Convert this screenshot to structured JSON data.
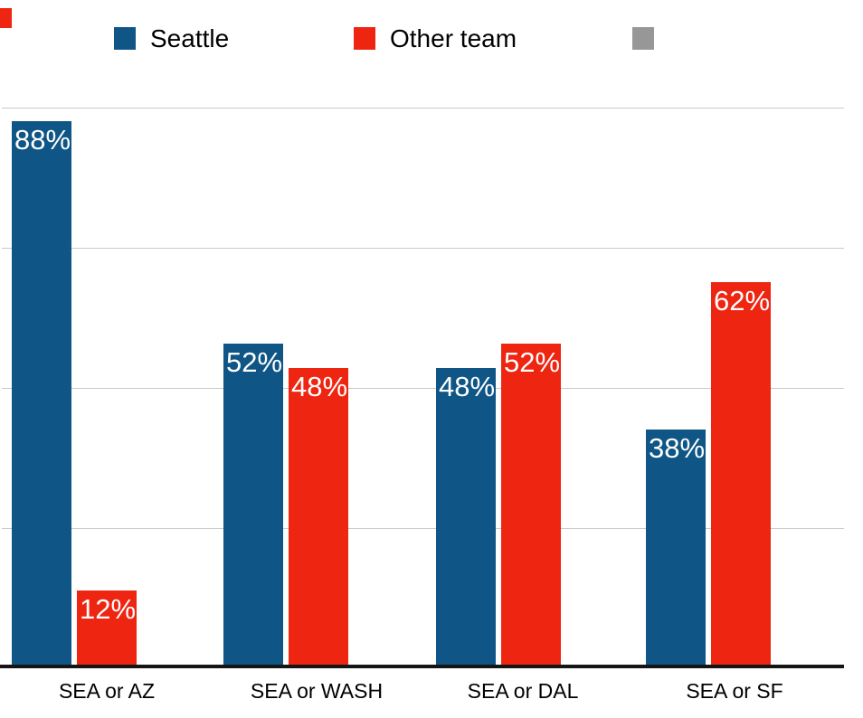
{
  "stray_swatch": {
    "color": "#ee2511"
  },
  "legend": {
    "items": [
      {
        "label": "Seattle",
        "color": "#0f5585"
      },
      {
        "label": "Other team",
        "color": "#ee2511"
      },
      {
        "label": "",
        "color": "#979797"
      }
    ]
  },
  "chart_data": {
    "type": "bar",
    "title": "",
    "xlabel": "",
    "ylabel": "",
    "categories": [
      "SEA or AZ",
      "SEA or WASH",
      "SEA or DAL",
      "SEA or SF"
    ],
    "series": [
      {
        "name": "Seattle",
        "color": "#0f5585",
        "values": [
          88,
          52,
          48,
          38
        ],
        "value_labels": [
          "88%",
          "52%",
          "48%",
          "38%"
        ]
      },
      {
        "name": "Other team",
        "color": "#ee2511",
        "values": [
          12,
          48,
          52,
          62
        ],
        "value_labels": [
          "12%",
          "48%",
          "52%",
          "62%"
        ]
      },
      {
        "name": "",
        "color": "#979797",
        "values": [
          0,
          0,
          0,
          0
        ],
        "value_labels": [
          "",
          "",
          "",
          ""
        ]
      }
    ],
    "ylim": [
      0,
      100
    ],
    "value_axis_labels_visible": false,
    "grid": true,
    "gridline_count": 4,
    "legend_position": "top",
    "value_label_position": "inside-top",
    "axis_color": "#151515",
    "gridline_color": "#c9c9c9",
    "background_color": "#ffffff"
  }
}
